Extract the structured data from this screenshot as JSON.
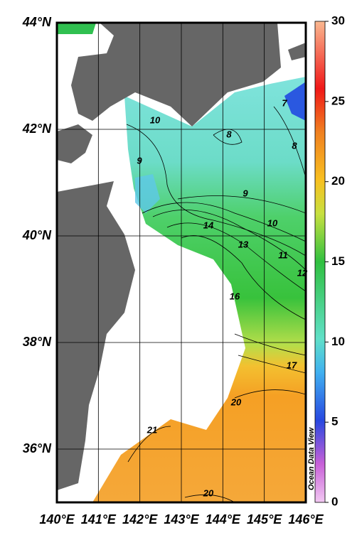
{
  "map": {
    "xlim": [
      140,
      146
    ],
    "ylim": [
      35,
      44
    ],
    "xticks": [
      {
        "value": 140,
        "label": "140°E"
      },
      {
        "value": 141,
        "label": "141°E"
      },
      {
        "value": 142,
        "label": "142°E"
      },
      {
        "value": 143,
        "label": "143°E"
      },
      {
        "value": 144,
        "label": "144°E"
      },
      {
        "value": 145,
        "label": "145°E"
      },
      {
        "value": 146,
        "label": "146°E"
      }
    ],
    "yticks": [
      {
        "value": 36,
        "label": "36°N"
      },
      {
        "value": 38,
        "label": "38°N"
      },
      {
        "value": 40,
        "label": "40°N"
      },
      {
        "value": 42,
        "label": "42°N"
      },
      {
        "value": 44,
        "label": "44°N"
      }
    ],
    "colorbar": {
      "lim": [
        0,
        30
      ],
      "ticks": [
        0,
        5,
        10,
        15,
        20,
        25,
        30
      ]
    },
    "contour_labels": [
      10,
      9,
      8,
      7,
      8,
      9,
      10,
      14,
      13,
      11,
      12,
      16,
      17,
      20,
      21,
      20
    ],
    "credit": "Ocean Data View"
  }
}
